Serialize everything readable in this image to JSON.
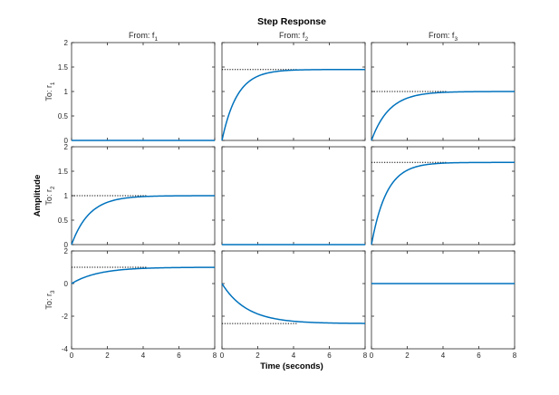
{
  "chart_data": {
    "type": "line",
    "title": "Step Response",
    "xlabel": "Time (seconds)",
    "ylabel": "Amplitude",
    "column_labels": [
      "f_1",
      "f_2",
      "f_3"
    ],
    "column_label_prefix": "From: ",
    "row_labels": [
      "r_1",
      "r_2",
      "r_3"
    ],
    "row_label_prefix": "To: ",
    "xlim": [
      0,
      8
    ],
    "xticks": [
      0,
      2,
      4,
      6,
      8
    ],
    "grid": false,
    "line_color": "#0072bd",
    "reference_line_color": "#000000",
    "rows": [
      {
        "ylim": [
          0,
          2
        ],
        "yticks": [
          "0",
          "0.5",
          "1",
          "1.5",
          "2"
        ],
        "cells": [
          {
            "final_value": 0,
            "time_constant": 1.0,
            "start_value": 0,
            "steady_state_line": false
          },
          {
            "final_value": 1.45,
            "time_constant": 0.85,
            "start_value": 0,
            "steady_state_line": true
          },
          {
            "final_value": 1.0,
            "time_constant": 1.0,
            "start_value": 0,
            "steady_state_line": true
          }
        ]
      },
      {
        "ylim": [
          0,
          2
        ],
        "yticks": [
          "0",
          "0.5",
          "1",
          "1.5",
          "2"
        ],
        "cells": [
          {
            "final_value": 1.0,
            "time_constant": 1.0,
            "start_value": 0,
            "steady_state_line": true
          },
          {
            "final_value": 0,
            "time_constant": 1.0,
            "start_value": 0,
            "steady_state_line": false
          },
          {
            "final_value": 1.68,
            "time_constant": 0.85,
            "start_value": 0,
            "steady_state_line": true
          }
        ]
      },
      {
        "ylim": [
          -4,
          2
        ],
        "yticks": [
          "-4",
          "-2",
          "0",
          "2"
        ],
        "cells": [
          {
            "final_value": 1.0,
            "time_constant": 1.5,
            "start_value": 0,
            "steady_state_line": true
          },
          {
            "final_value": -2.45,
            "time_constant": 1.4,
            "start_value": 0,
            "steady_state_line": true
          },
          {
            "final_value": 0,
            "time_constant": 1.0,
            "start_value": 0,
            "steady_state_line": false
          }
        ]
      }
    ]
  }
}
